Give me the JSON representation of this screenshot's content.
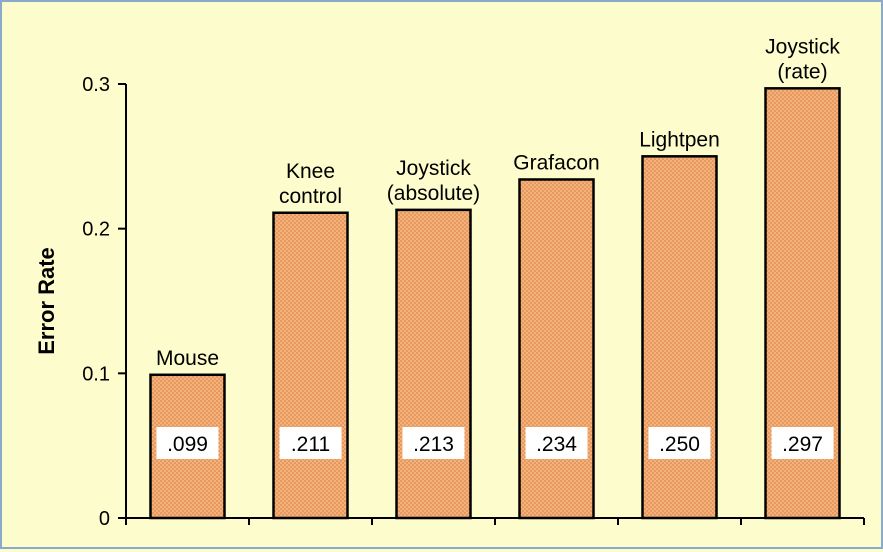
{
  "colors": {
    "background": "#fdfccc",
    "frame_border": "#8aa9cc",
    "bar_fill": "#f3b27c",
    "bar_dots": "#d97a3a",
    "bar_stroke": "#000000",
    "value_label_bg": "#ffffff"
  },
  "chart_data": {
    "type": "bar",
    "title": "",
    "xlabel": "",
    "ylabel": "Error Rate",
    "ylim": [
      0,
      0.3
    ],
    "yticks": [
      0,
      0.1,
      0.2,
      0.3
    ],
    "ytick_labels": [
      "0",
      "0.1",
      "0.2",
      "0.3"
    ],
    "grid": false,
    "legend": "none",
    "categories": [
      [
        "Mouse"
      ],
      [
        "Knee",
        "control"
      ],
      [
        "Joystick",
        "(absolute)"
      ],
      [
        "Grafacon"
      ],
      [
        "Lightpen"
      ],
      [
        "Joystick",
        "(rate)"
      ]
    ],
    "values": [
      0.099,
      0.211,
      0.213,
      0.234,
      0.25,
      0.297
    ],
    "value_labels": [
      ".099",
      ".211",
      ".213",
      ".234",
      ".250",
      ".297"
    ]
  }
}
